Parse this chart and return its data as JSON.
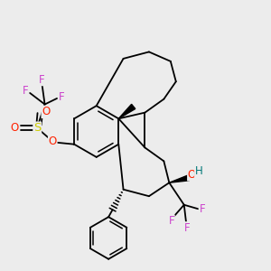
{
  "background_color": "#ececec",
  "figsize": [
    3.0,
    3.0
  ],
  "dpi": 100,
  "colors": {
    "bond": "#000000",
    "F": "#cc44cc",
    "O": "#ff2200",
    "S": "#cccc00",
    "H": "#007777",
    "C": "#000000"
  }
}
